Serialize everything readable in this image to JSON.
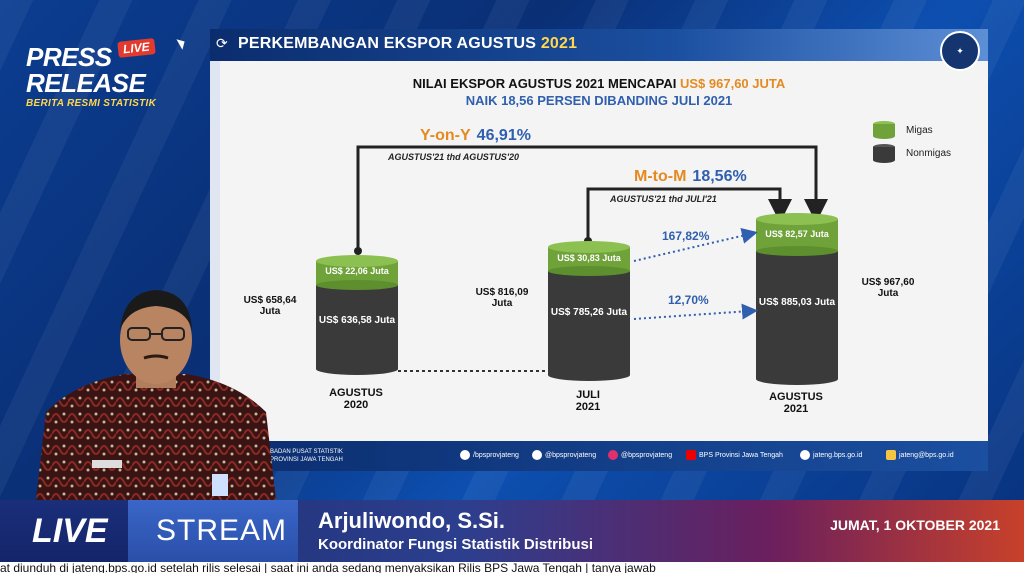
{
  "brand": {
    "line1": "PRESS",
    "line2": "RELEASE",
    "live_badge": "LIVE",
    "tagline": "BERITA RESMI STATISTIK"
  },
  "slide": {
    "title_main": "PERKEMBANGAN EKSPOR AGUSTUS",
    "title_year": "2021",
    "headline1_prefix": "NILAI EKSPOR AGUSTUS 2021 MENCAPAI ",
    "headline1_value": "US$ 967,60 JUTA",
    "headline2": "NAIK 18,56 PERSEN DIBANDING JULI 2021",
    "yoy_label": "Y-on-Y",
    "yoy_value": "46,91%",
    "yoy_sub": "AGUSTUS'21 thd AGUSTUS'20",
    "mtm_label": "M-to-M",
    "mtm_value": "18,56%",
    "mtm_sub": "AGUSTUS'21 thd JULI'21",
    "legend_migas": "Migas",
    "legend_nonmigas": "Nonmigas",
    "colors": {
      "migas": "#6fa33a",
      "nonmigas": "#3a3a3a",
      "accent": "#e58a21",
      "blue": "#2f5fae"
    },
    "cylinders": [
      {
        "period_line1": "AGUSTUS",
        "period_line2": "2020",
        "migas": "US$ 22,06 Juta",
        "nonmigas": "US$ 636,58 Juta",
        "total_line1": "US$ 658,64",
        "total_line2": "Juta"
      },
      {
        "period_line1": "JULI",
        "period_line2": "2021",
        "migas": "US$ 30,83 Juta",
        "nonmigas": "US$ 785,26 Juta",
        "total_line1": "US$ 816,09",
        "total_line2": "Juta"
      },
      {
        "period_line1": "AGUSTUS",
        "period_line2": "2021",
        "migas": "US$ 82,57 Juta",
        "nonmigas": "US$ 885,03 Juta",
        "total_line1": "US$ 967,60",
        "total_line2": "Juta"
      }
    ],
    "pct_migas": "167,82%",
    "pct_nonmigas": "12,70%",
    "footer": {
      "org": "BADAN PUSAT STATISTIK PROVINSI JAWA TENGAH",
      "fb": "/bpsprovjateng",
      "tw": "@bpsprovjateng",
      "ig": "@bpsprovjateng",
      "yt": "BPS Provinsi Jawa Tengah",
      "web": "jateng.bps.go.id",
      "mail": "jateng@bps.go.id"
    }
  },
  "lower_third": {
    "live": "LIVE",
    "stream": "STREAM",
    "name": "Arjuliwondo, S.Si.",
    "role": "Koordinator Fungsi Statistik Distribusi",
    "date": "JUMAT, 1 OKTOBER 2021"
  },
  "ticker": "at diunduh di jateng.bps.go.id setelah rilis selesai  |  saat ini anda sedang menyaksikan Rilis BPS Jawa Tengah  |  tanya jawab"
}
